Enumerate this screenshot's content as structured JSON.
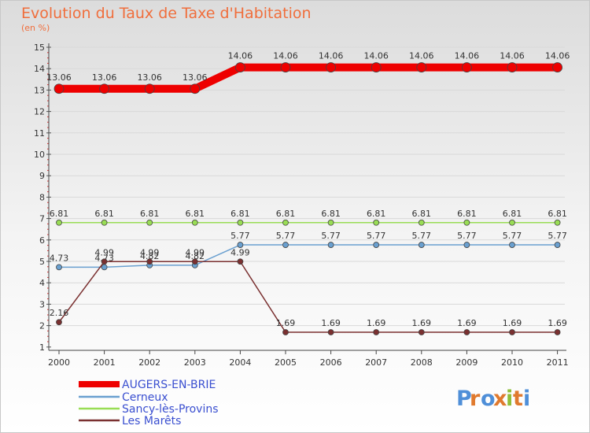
{
  "chart_data": {
    "type": "line",
    "title": "Evolution du Taux de Taxe d'Habitation",
    "subtitle": "(en %)",
    "x": [
      "2000",
      "2001",
      "2002",
      "2003",
      "2004",
      "2005",
      "2006",
      "2007",
      "2008",
      "2009",
      "2010",
      "2011"
    ],
    "ylim": [
      1,
      15
    ],
    "yticks": [
      "1",
      "2",
      "3",
      "4",
      "5",
      "6",
      "7",
      "8",
      "9",
      "10",
      "11",
      "12",
      "13",
      "14",
      "15"
    ],
    "series": [
      {
        "name": "AUGERS-EN-BRIE",
        "color": "#ee0000",
        "values": [
          13.06,
          13.06,
          13.06,
          13.06,
          14.06,
          14.06,
          14.06,
          14.06,
          14.06,
          14.06,
          14.06,
          14.06
        ],
        "labels": [
          "13.06",
          "13.06",
          "13.06",
          "13.06",
          "14.06",
          "14.06",
          "14.06",
          "14.06",
          "14.06",
          "14.06",
          "14.06",
          "14.06"
        ]
      },
      {
        "name": "Cerneux",
        "color": "#6aa0d0",
        "values": [
          4.73,
          4.73,
          4.82,
          4.82,
          5.77,
          5.77,
          5.77,
          5.77,
          5.77,
          5.77,
          5.77,
          5.77
        ],
        "labels": [
          "4.73",
          "4.73",
          "4.82",
          "4.82",
          "5.77",
          "5.77",
          "5.77",
          "5.77",
          "5.77",
          "5.77",
          "5.77",
          "5.77"
        ]
      },
      {
        "name": "Sancy-lès-Provins",
        "color": "#99dd55",
        "values": [
          6.81,
          6.81,
          6.81,
          6.81,
          6.81,
          6.81,
          6.81,
          6.81,
          6.81,
          6.81,
          6.81,
          6.81
        ],
        "labels": [
          "6.81",
          "6.81",
          "6.81",
          "6.81",
          "6.81",
          "6.81",
          "6.81",
          "6.81",
          "6.81",
          "6.81",
          "6.81",
          "6.81"
        ]
      },
      {
        "name": "Les Marêts",
        "color": "#7a3030",
        "values": [
          2.16,
          4.99,
          4.99,
          4.99,
          4.99,
          1.69,
          1.69,
          1.69,
          1.69,
          1.69,
          1.69,
          1.69
        ],
        "labels": [
          "2.16",
          "4.99",
          "4.99",
          "4.99",
          "4.99",
          "1.69",
          "1.69",
          "1.69",
          "1.69",
          "1.69",
          "1.69",
          "1.69"
        ]
      }
    ],
    "legend_position": "bottom-left"
  },
  "brand": "Proxiti"
}
